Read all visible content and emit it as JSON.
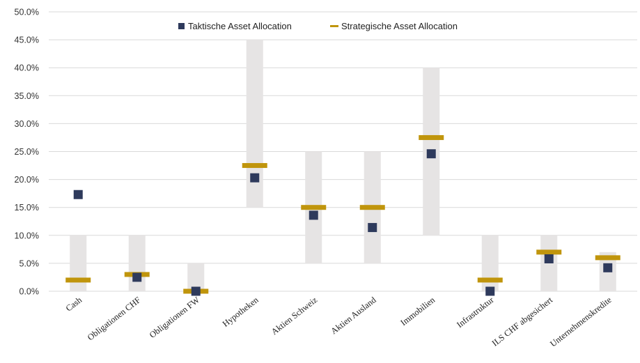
{
  "chart_data": {
    "type": "scatter",
    "title": "",
    "xlabel": "",
    "ylabel": "",
    "ylim": [
      0,
      50
    ],
    "y_ticks": [
      "0.0%",
      "5.0%",
      "10.0%",
      "15.0%",
      "20.0%",
      "25.0%",
      "30.0%",
      "35.0%",
      "40.0%",
      "45.0%",
      "50.0%"
    ],
    "y_tick_values": [
      0,
      5,
      10,
      15,
      20,
      25,
      30,
      35,
      40,
      45,
      50
    ],
    "grid": true,
    "legend_position": "top-center",
    "categories": [
      "Cash",
      "Obligationen CHF",
      "Obligationen FW",
      "Hypotheken",
      "Aktien Schweiz",
      "Aktien Ausland",
      "Immobilien",
      "Infrastruktur",
      "ILS CHF abgesichert",
      "Unternehmenskredite"
    ],
    "ranges": {
      "min": [
        0,
        0,
        0,
        15,
        5,
        5,
        10,
        0,
        0,
        0
      ],
      "max": [
        10,
        10,
        5,
        45,
        25,
        25,
        40,
        10,
        10,
        7
      ],
      "color": "#e6e4e4"
    },
    "series": [
      {
        "name": "Taktische Asset Allocation",
        "marker": "square",
        "color": "#2e3a5c",
        "values": [
          17.3,
          2.5,
          0.0,
          20.3,
          13.6,
          11.4,
          24.6,
          0.0,
          5.8,
          4.2
        ]
      },
      {
        "name": "Strategische Asset Allocation",
        "marker": "dash",
        "color": "#c0950c",
        "values": [
          2.0,
          3.0,
          0.0,
          22.5,
          15.0,
          15.0,
          27.5,
          2.0,
          7.0,
          6.0
        ]
      }
    ]
  }
}
